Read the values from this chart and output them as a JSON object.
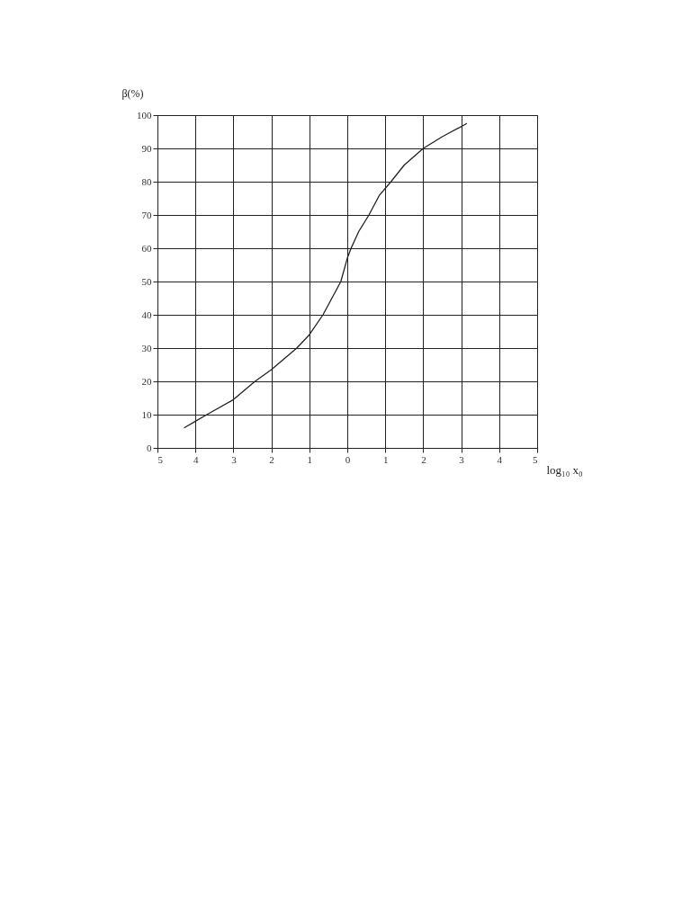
{
  "chart_data": {
    "type": "line",
    "xlabel": "log₁₀ x₀",
    "ylabel": "β(%)",
    "x": [
      -4.3,
      -4,
      -3.7,
      -3,
      -2.43,
      -2,
      -1.33,
      -1,
      -0.64,
      -0.17,
      0,
      0.1,
      0.3,
      0.57,
      0.85,
      1.15,
      1.5,
      2,
      2.5,
      3.15
    ],
    "series": [
      {
        "color": "#222222",
        "values": [
          6,
          8,
          10,
          14.5,
          20,
          23.5,
          30,
          34,
          40,
          50,
          57,
          60,
          65,
          70,
          76,
          80,
          85,
          90,
          93.5,
          97.5
        ]
      }
    ],
    "xlim": [
      -5,
      5
    ],
    "xticks": [
      {
        "value": -5,
        "label": "5"
      },
      {
        "value": -4,
        "label": "4"
      },
      {
        "value": -3,
        "label": "3"
      },
      {
        "value": -2,
        "label": "2"
      },
      {
        "value": -1,
        "label": "1"
      },
      0,
      1,
      2,
      3,
      4,
      5
    ],
    "ylim": [
      0,
      100
    ],
    "yticks": [
      0,
      10,
      20,
      30,
      40,
      50,
      60,
      70,
      80,
      90,
      100
    ],
    "grid": true,
    "marker": "none",
    "line_style": "solid"
  }
}
